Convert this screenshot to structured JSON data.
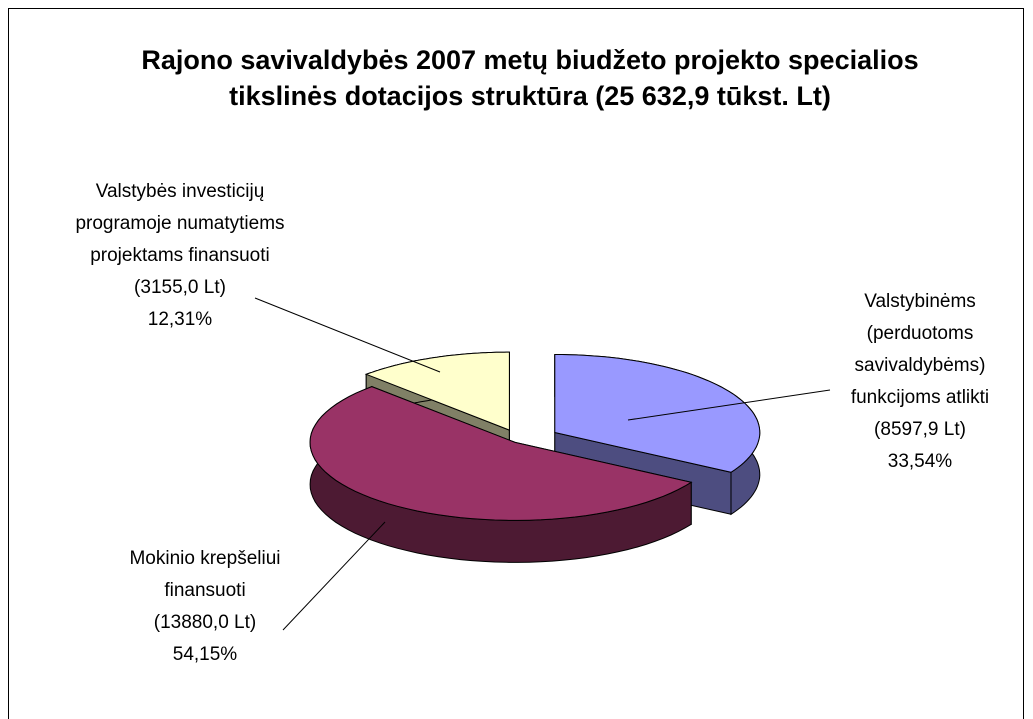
{
  "chart_data": {
    "type": "pie3d",
    "title": "Rajono savivaldybės 2007 metų biudžeto projekto specialios tikslinės dotacijos struktūra (25 632,9 tūkst. Lt)",
    "categories": [
      "Valstybinėms (perduotoms savivaldybėms) funkcijoms atlikti",
      "Mokinio krepšeliui finansuoti",
      "Valstybės investicijų programoje numatytiems projektams finansuoti"
    ],
    "amount_labels": [
      "(8597,9 Lt)",
      "(13880,0 Lt)",
      "(3155,0 Lt)"
    ],
    "values": [
      33.54,
      54.15,
      12.31
    ],
    "value_labels": [
      "33,54%",
      "54,15%",
      "12,31%"
    ],
    "colors": [
      "#9999ff",
      "#993366",
      "#ffffcc"
    ],
    "side_colors": [
      "#4d4d80",
      "#4d1a33",
      "#808066"
    ]
  }
}
